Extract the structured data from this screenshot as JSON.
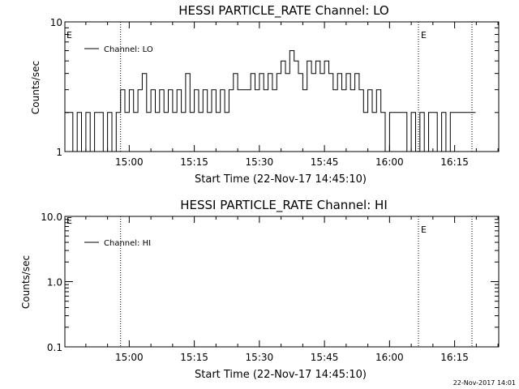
{
  "footer_timestamp": "22-Nov-2017 14:01",
  "chart_data": [
    {
      "type": "line",
      "title": "HESSI PARTICLE_RATE Channel: LO",
      "xlabel": "Start Time (22-Nov-17 14:45:10)",
      "ylabel": "Counts/sec",
      "yscale": "log",
      "ylim": [
        1,
        10
      ],
      "ytick_values": [
        1,
        10
      ],
      "ytick_labels": [
        "1",
        "10"
      ],
      "xlim": [
        "14:45:10",
        "16:25:10"
      ],
      "xtick_values": [
        "15:00",
        "15:15",
        "15:30",
        "15:45",
        "16:00",
        "16:15"
      ],
      "xtick_labels": [
        "15:00",
        "15:15",
        "15:30",
        "15:45",
        "16:00",
        "16:15"
      ],
      "legend": {
        "position": "top-left",
        "entries": [
          "Channel: LO"
        ]
      },
      "event_lines": [
        {
          "x": "14:58:00",
          "label": ""
        },
        {
          "x": "16:06:40",
          "label": "E"
        },
        {
          "x": "16:19:00",
          "label": ""
        }
      ],
      "corner_label": "E",
      "series": [
        {
          "name": "Channel: LO",
          "x": [
            "14:45:10",
            "14:46:00",
            "14:47:00",
            "14:48:00",
            "14:49:00",
            "14:50:00",
            "14:51:00",
            "14:52:00",
            "14:53:00",
            "14:54:00",
            "14:55:00",
            "14:56:00",
            "14:57:00",
            "14:58:00",
            "14:59:00",
            "15:00:00",
            "15:01:00",
            "15:02:00",
            "15:03:00",
            "15:04:00",
            "15:05:00",
            "15:06:00",
            "15:07:00",
            "15:08:00",
            "15:09:00",
            "15:10:00",
            "15:11:00",
            "15:12:00",
            "15:13:00",
            "15:14:00",
            "15:15:00",
            "15:16:00",
            "15:17:00",
            "15:18:00",
            "15:19:00",
            "15:20:00",
            "15:21:00",
            "15:22:00",
            "15:23:00",
            "15:24:00",
            "15:25:00",
            "15:26:00",
            "15:27:00",
            "15:28:00",
            "15:29:00",
            "15:30:00",
            "15:31:00",
            "15:32:00",
            "15:33:00",
            "15:34:00",
            "15:35:00",
            "15:36:00",
            "15:37:00",
            "15:38:00",
            "15:39:00",
            "15:40:00",
            "15:41:00",
            "15:42:00",
            "15:43:00",
            "15:44:00",
            "15:45:00",
            "15:46:00",
            "15:47:00",
            "15:48:00",
            "15:49:00",
            "15:50:00",
            "15:51:00",
            "15:52:00",
            "15:53:00",
            "15:54:00",
            "15:55:00",
            "15:56:00",
            "15:57:00",
            "15:58:00",
            "15:59:00",
            "16:00:00",
            "16:01:00",
            "16:02:00",
            "16:03:00",
            "16:04:00",
            "16:05:00",
            "16:06:00",
            "16:07:00",
            "16:08:00",
            "16:09:00",
            "16:10:00",
            "16:11:00",
            "16:12:00",
            "16:13:00",
            "16:14:00",
            "16:15:00",
            "16:16:00",
            "16:17:00",
            "16:18:00",
            "16:19:00"
          ],
          "values": [
            2,
            2,
            1,
            2,
            1,
            2,
            1,
            2,
            2,
            1,
            2,
            1,
            2,
            3,
            2,
            3,
            2,
            3,
            4,
            2,
            3,
            2,
            3,
            2,
            3,
            2,
            3,
            2,
            4,
            2,
            3,
            2,
            3,
            2,
            3,
            2,
            3,
            2,
            3,
            4,
            3,
            3,
            3,
            4,
            3,
            4,
            3,
            4,
            3,
            4,
            5,
            4,
            6,
            5,
            4,
            3,
            5,
            4,
            5,
            4,
            5,
            4,
            3,
            4,
            3,
            4,
            3,
            4,
            3,
            2,
            3,
            2,
            3,
            2,
            1,
            2,
            2,
            2,
            2,
            1,
            2,
            1,
            2,
            1,
            2,
            2,
            1,
            2,
            1,
            2,
            2,
            2,
            2,
            2,
            2
          ]
        }
      ]
    },
    {
      "type": "line",
      "title": "HESSI PARTICLE_RATE Channel: HI",
      "xlabel": "Start Time (22-Nov-17 14:45:10)",
      "ylabel": "Counts/sec",
      "yscale": "log",
      "ylim": [
        0.1,
        10
      ],
      "ytick_values": [
        0.1,
        1,
        10
      ],
      "ytick_labels": [
        "0.1",
        "1.0",
        "10.0"
      ],
      "xlim": [
        "14:45:10",
        "16:25:10"
      ],
      "xtick_values": [
        "15:00",
        "15:15",
        "15:30",
        "15:45",
        "16:00",
        "16:15"
      ],
      "xtick_labels": [
        "15:00",
        "15:15",
        "15:30",
        "15:45",
        "16:00",
        "16:15"
      ],
      "legend": {
        "position": "top-left",
        "entries": [
          "Channel: HI"
        ]
      },
      "event_lines": [
        {
          "x": "14:58:00",
          "label": ""
        },
        {
          "x": "16:06:40",
          "label": "E"
        },
        {
          "x": "16:19:00",
          "label": ""
        }
      ],
      "corner_label": "E",
      "series": [
        {
          "name": "Channel: HI",
          "x": [],
          "values": []
        }
      ]
    }
  ]
}
